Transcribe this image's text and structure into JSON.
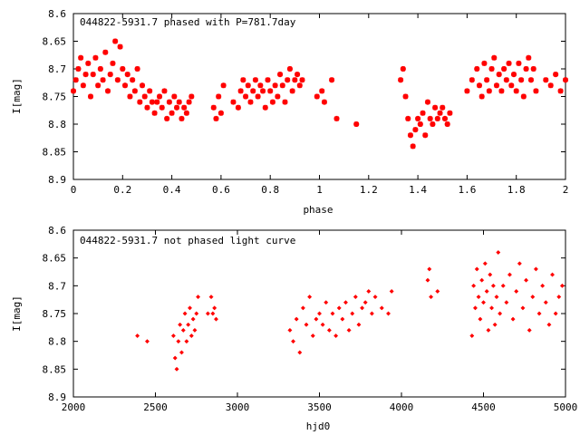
{
  "chart_data": [
    {
      "type": "scatter",
      "title": "044822-5931.7 phased with P=781.7day",
      "xlabel": "phase",
      "ylabel": "I[mag]",
      "xlim": [
        0,
        2
      ],
      "ylim": [
        8.6,
        8.9
      ],
      "y_inverted": true,
      "xticks": [
        "0",
        "0.2",
        "0.4",
        "0.6",
        "0.8",
        "1",
        "1.2",
        "1.4",
        "1.6",
        "1.8",
        "2"
      ],
      "yticks": [
        "8.6",
        "8.65",
        "8.7",
        "8.75",
        "8.8",
        "8.85",
        "8.9"
      ],
      "marker": "asterisk",
      "color": "#ff0000",
      "x": [
        0.0,
        0.01,
        0.02,
        0.03,
        0.04,
        0.05,
        0.06,
        0.07,
        0.08,
        0.09,
        0.1,
        0.11,
        0.12,
        0.13,
        0.14,
        0.15,
        0.16,
        0.17,
        0.18,
        0.19,
        0.2,
        0.21,
        0.22,
        0.23,
        0.24,
        0.25,
        0.26,
        0.27,
        0.28,
        0.29,
        0.3,
        0.31,
        0.32,
        0.33,
        0.34,
        0.35,
        0.36,
        0.37,
        0.38,
        0.39,
        0.4,
        0.41,
        0.42,
        0.43,
        0.44,
        0.45,
        0.46,
        0.47,
        0.48,
        0.57,
        0.58,
        0.59,
        0.6,
        0.61,
        0.65,
        0.67,
        0.68,
        0.69,
        0.7,
        0.71,
        0.72,
        0.73,
        0.74,
        0.75,
        0.76,
        0.77,
        0.78,
        0.79,
        0.8,
        0.81,
        0.82,
        0.83,
        0.84,
        0.85,
        0.86,
        0.87,
        0.88,
        0.89,
        0.9,
        0.91,
        0.92,
        0.93,
        0.99,
        1.01,
        1.02,
        1.05,
        1.07,
        1.15,
        1.33,
        1.34,
        1.35,
        1.36,
        1.37,
        1.38,
        1.39,
        1.4,
        1.41,
        1.42,
        1.43,
        1.44,
        1.45,
        1.46,
        1.47,
        1.48,
        1.49,
        1.5,
        1.51,
        1.52,
        1.53,
        1.6,
        1.62,
        1.64,
        1.65,
        1.66,
        1.67,
        1.68,
        1.69,
        1.7,
        1.71,
        1.72,
        1.73,
        1.74,
        1.75,
        1.76,
        1.77,
        1.78,
        1.79,
        1.8,
        1.81,
        1.82,
        1.83,
        1.84,
        1.85,
        1.86,
        1.87,
        1.88,
        1.92,
        1.94,
        1.96,
        1.98,
        2.0
      ],
      "y": [
        8.74,
        8.72,
        8.7,
        8.68,
        8.73,
        8.71,
        8.69,
        8.75,
        8.71,
        8.68,
        8.73,
        8.7,
        8.72,
        8.67,
        8.74,
        8.71,
        8.69,
        8.65,
        8.72,
        8.66,
        8.7,
        8.73,
        8.71,
        8.75,
        8.72,
        8.74,
        8.7,
        8.76,
        8.73,
        8.75,
        8.77,
        8.74,
        8.76,
        8.78,
        8.76,
        8.75,
        8.77,
        8.74,
        8.79,
        8.76,
        8.78,
        8.75,
        8.77,
        8.76,
        8.79,
        8.77,
        8.78,
        8.76,
        8.75,
        8.77,
        8.79,
        8.75,
        8.78,
        8.73,
        8.76,
        8.77,
        8.74,
        8.72,
        8.75,
        8.73,
        8.76,
        8.74,
        8.72,
        8.75,
        8.73,
        8.74,
        8.77,
        8.72,
        8.74,
        8.76,
        8.73,
        8.75,
        8.71,
        8.73,
        8.76,
        8.72,
        8.7,
        8.74,
        8.72,
        8.71,
        8.73,
        8.72,
        8.75,
        8.74,
        8.76,
        8.72,
        8.79,
        8.8,
        8.72,
        8.7,
        8.75,
        8.79,
        8.82,
        8.84,
        8.81,
        8.79,
        8.8,
        8.78,
        8.82,
        8.76,
        8.79,
        8.8,
        8.77,
        8.79,
        8.78,
        8.77,
        8.79,
        8.8,
        8.78,
        8.74,
        8.72,
        8.7,
        8.73,
        8.75,
        8.69,
        8.72,
        8.74,
        8.7,
        8.68,
        8.73,
        8.71,
        8.74,
        8.7,
        8.72,
        8.69,
        8.73,
        8.71,
        8.74,
        8.69,
        8.72,
        8.75,
        8.7,
        8.68,
        8.72,
        8.7,
        8.74,
        8.72,
        8.73,
        8.71,
        8.74,
        8.72
      ]
    },
    {
      "type": "scatter",
      "title": "044822-5931.7 not phased light curve",
      "xlabel": "hjd0",
      "ylabel": "I[mag]",
      "xlim": [
        2000,
        5000
      ],
      "ylim": [
        8.6,
        8.9
      ],
      "y_inverted": true,
      "xticks": [
        "2000",
        "2500",
        "3000",
        "3500",
        "4000",
        "4500",
        "5000"
      ],
      "yticks": [
        "8.6",
        "8.65",
        "8.7",
        "8.75",
        "8.8",
        "8.85",
        "8.9"
      ],
      "marker": "diamond",
      "color": "#ff0000",
      "x": [
        2390,
        2450,
        2610,
        2620,
        2630,
        2640,
        2650,
        2660,
        2670,
        2680,
        2690,
        2700,
        2710,
        2720,
        2730,
        2740,
        2750,
        2760,
        2820,
        2840,
        2850,
        2860,
        2870,
        3320,
        3340,
        3360,
        3380,
        3400,
        3420,
        3440,
        3460,
        3480,
        3500,
        3520,
        3540,
        3560,
        3580,
        3600,
        3620,
        3640,
        3660,
        3680,
        3700,
        3720,
        3740,
        3760,
        3780,
        3800,
        3820,
        3840,
        3880,
        3920,
        3940,
        4160,
        4170,
        4180,
        4220,
        4430,
        4440,
        4450,
        4460,
        4470,
        4480,
        4490,
        4500,
        4510,
        4520,
        4530,
        4540,
        4550,
        4560,
        4570,
        4580,
        4590,
        4600,
        4620,
        4640,
        4660,
        4680,
        4700,
        4720,
        4740,
        4760,
        4780,
        4800,
        4820,
        4840,
        4860,
        4880,
        4900,
        4920,
        4940,
        4960,
        4980
      ],
      "y": [
        8.79,
        8.8,
        8.79,
        8.83,
        8.85,
        8.8,
        8.77,
        8.82,
        8.78,
        8.75,
        8.8,
        8.77,
        8.74,
        8.79,
        8.76,
        8.78,
        8.75,
        8.72,
        8.75,
        8.72,
        8.75,
        8.74,
        8.76,
        8.78,
        8.8,
        8.76,
        8.82,
        8.74,
        8.77,
        8.72,
        8.79,
        8.76,
        8.75,
        8.77,
        8.73,
        8.78,
        8.75,
        8.79,
        8.74,
        8.76,
        8.73,
        8.78,
        8.75,
        8.72,
        8.77,
        8.74,
        8.73,
        8.71,
        8.75,
        8.72,
        8.74,
        8.75,
        8.71,
        8.69,
        8.67,
        8.72,
        8.71,
        8.79,
        8.7,
        8.74,
        8.67,
        8.72,
        8.76,
        8.69,
        8.73,
        8.66,
        8.71,
        8.78,
        8.68,
        8.74,
        8.7,
        8.77,
        8.72,
        8.64,
        8.75,
        8.7,
        8.73,
        8.68,
        8.76,
        8.71,
        8.66,
        8.74,
        8.69,
        8.78,
        8.72,
        8.67,
        8.75,
        8.7,
        8.73,
        8.77,
        8.68,
        8.75,
        8.72,
        8.7
      ]
    }
  ]
}
